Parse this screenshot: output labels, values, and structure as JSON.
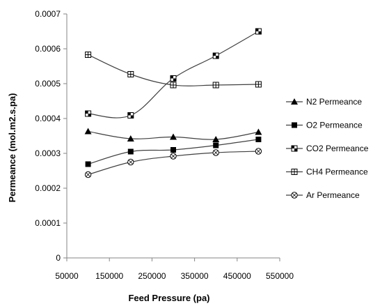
{
  "chart_data": {
    "type": "line",
    "title": "",
    "xlabel": "Feed Pressure (pa)",
    "ylabel": "Permeance (mol.m2.s.pa)",
    "xlim": [
      50000,
      550000
    ],
    "ylim": [
      0,
      0.0007
    ],
    "x_ticks": [
      "50000",
      "150000",
      "250000",
      "350000",
      "450000",
      "550000"
    ],
    "y_ticks": [
      "0",
      "0.0001",
      "0.0002",
      "0.0003",
      "0.0004",
      "0.0005",
      "0.0006",
      "0.0007"
    ],
    "grid": false,
    "legend_position": "right",
    "x": [
      100000,
      200000,
      300000,
      400000,
      500000
    ],
    "series": [
      {
        "name": "N2 Permeance",
        "marker": "triangle",
        "values": [
          0.000363,
          0.000342,
          0.000347,
          0.00034,
          0.000361
        ]
      },
      {
        "name": "O2 Permeance",
        "marker": "square",
        "values": [
          0.000269,
          0.000305,
          0.00031,
          0.000323,
          0.00034
        ]
      },
      {
        "name": "CO2 Permeance",
        "marker": "checker",
        "values": [
          0.000414,
          0.000409,
          0.000515,
          0.00058,
          0.00065
        ]
      },
      {
        "name": "CH4 Permeance",
        "marker": "cross-box",
        "values": [
          0.000583,
          0.000527,
          0.000496,
          0.000496,
          0.000498
        ]
      },
      {
        "name": "Ar Permeance",
        "marker": "circle",
        "values": [
          0.000239,
          0.000275,
          0.000292,
          0.000302,
          0.000306
        ]
      }
    ]
  }
}
